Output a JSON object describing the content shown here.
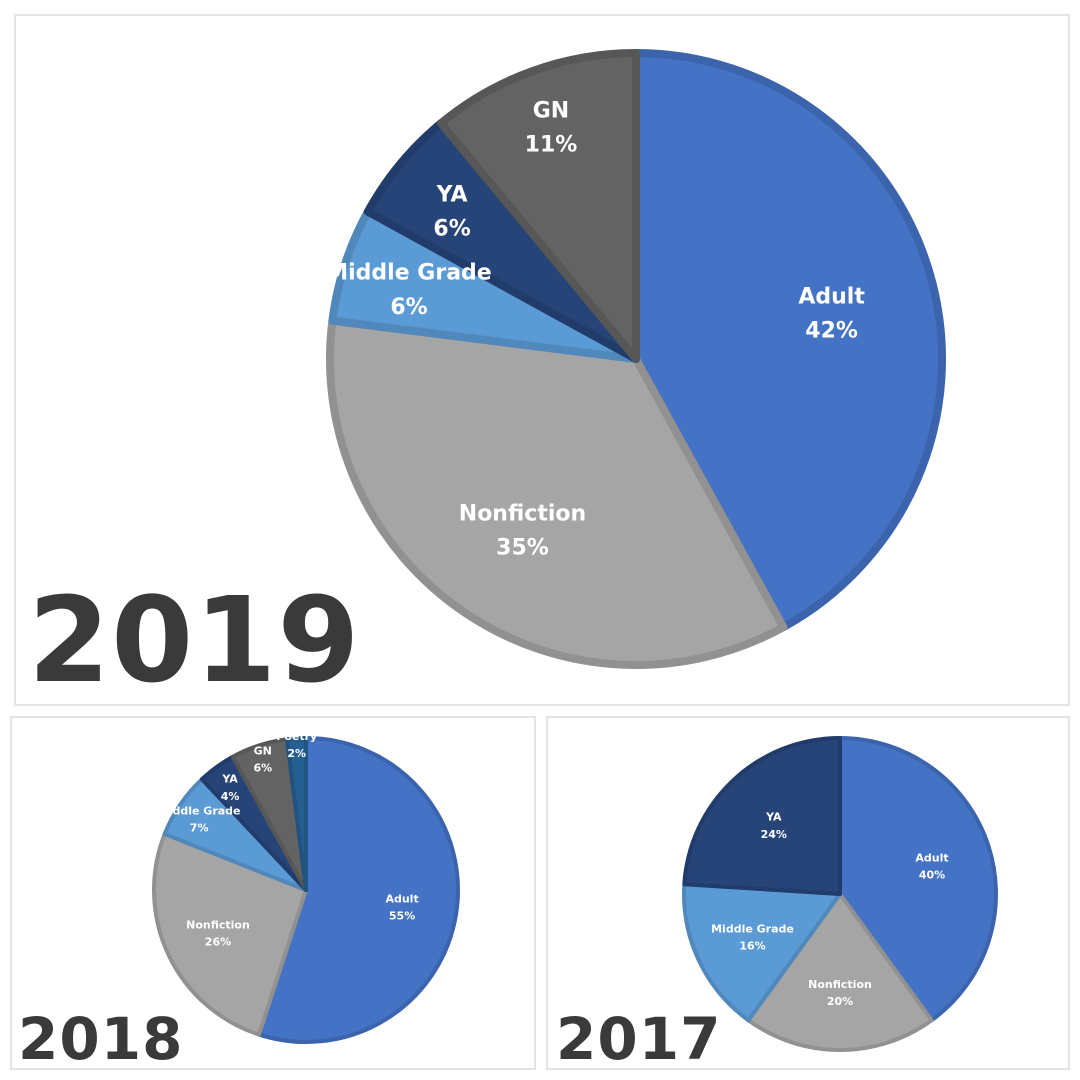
{
  "chart_data": [
    {
      "type": "pie",
      "title": "2019",
      "colors": {
        "Adult": "#4472c4",
        "Nonfiction": "#a5a5a5",
        "Middle Grade": "#5b9bd5",
        "YA": "#264478",
        "GN": "#636363"
      },
      "slices": [
        {
          "label": "Adult",
          "value": 42,
          "text": "42%"
        },
        {
          "label": "Nonfiction",
          "value": 35,
          "text": "35%"
        },
        {
          "label": "Middle Grade",
          "value": 6,
          "text": "6%"
        },
        {
          "label": "YA",
          "value": 6,
          "text": "6%"
        },
        {
          "label": "GN",
          "value": 11,
          "text": "11%"
        }
      ]
    },
    {
      "type": "pie",
      "title": "2018",
      "colors": {
        "Adult": "#4472c4",
        "Nonfiction": "#a5a5a5",
        "Middle Grade": "#5b9bd5",
        "YA": "#264478",
        "GN": "#636363",
        "Poetry": "#255e91"
      },
      "slices": [
        {
          "label": "Adult",
          "value": 55,
          "text": "55%"
        },
        {
          "label": "Nonfiction",
          "value": 26,
          "text": "26%"
        },
        {
          "label": "Middle Grade",
          "value": 7,
          "text": "7%"
        },
        {
          "label": "YA",
          "value": 4,
          "text": "4%"
        },
        {
          "label": "GN",
          "value": 6,
          "text": "6%"
        },
        {
          "label": "Poetry",
          "value": 2,
          "text": "2%"
        }
      ]
    },
    {
      "type": "pie",
      "title": "2017",
      "colors": {
        "Adult": "#4472c4",
        "Nonfiction": "#a5a5a5",
        "Middle Grade": "#5b9bd5",
        "YA": "#264478"
      },
      "slices": [
        {
          "label": "Adult",
          "value": 40,
          "text": "40%"
        },
        {
          "label": "Nonfiction",
          "value": 20,
          "text": "20%"
        },
        {
          "label": "Middle Grade",
          "value": 16,
          "text": "16%"
        },
        {
          "label": "YA",
          "value": 24,
          "text": "24%"
        }
      ]
    }
  ]
}
